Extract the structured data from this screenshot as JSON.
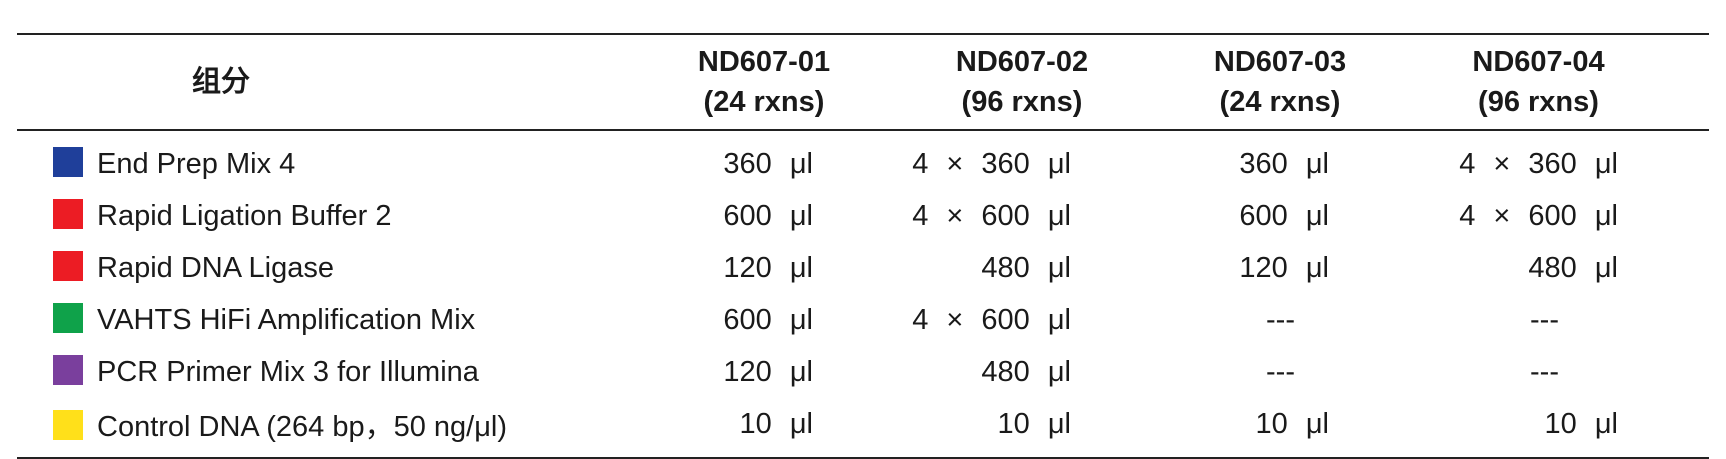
{
  "table": {
    "header": [
      "组分",
      "ND607-01\n(24 rxns)",
      "ND607-02\n(96 rxns)",
      "ND607-03\n(24 rxns)",
      "ND607-04\n(96 rxns)"
    ],
    "rows": [
      {
        "color": "#1f3f9a",
        "cells": [
          "End Prep Mix 4",
          "360 μl",
          "4 × 360 μl",
          "360 μl",
          "4 × 360 μl"
        ]
      },
      {
        "color": "#ec1c24",
        "cells": [
          "Rapid Ligation Buffer 2",
          "600 μl",
          "4 × 600 μl",
          "600 μl",
          "4 × 600 μl"
        ]
      },
      {
        "color": "#ec1c24",
        "cells": [
          "Rapid DNA Ligase",
          "120 μl",
          "480 μl",
          "120 μl",
          "480 μl"
        ]
      },
      {
        "color": "#0fa24a",
        "cells": [
          "VAHTS HiFi Amplification Mix",
          "600 μl",
          "4 × 600 μl",
          "---",
          "---"
        ]
      },
      {
        "color": "#7a3f9d",
        "cells": [
          "PCR Primer Mix 3 for Illumina",
          "120 μl",
          "480 μl",
          "---",
          "---"
        ]
      },
      {
        "color": "#ffe01a",
        "cells": [
          "Control DNA (264 bp，50 ng/μl)",
          "10 μl",
          "10 μl",
          "10 μl",
          "10 μl"
        ]
      }
    ]
  }
}
